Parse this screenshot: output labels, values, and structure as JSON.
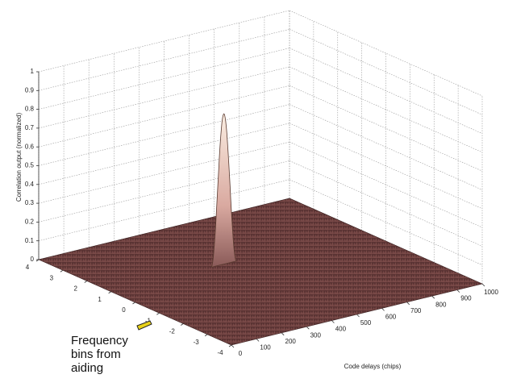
{
  "chart_data": {
    "type": "surface3d",
    "zlabel": "Correlation output (normalized)",
    "xlabel": "Code delays (chips)",
    "annotation": "Frequency bins from aiding",
    "xlim": [
      0,
      1000
    ],
    "xticks": [
      0,
      100,
      200,
      300,
      400,
      500,
      600,
      700,
      800,
      900,
      1000
    ],
    "ylim": [
      -4,
      4
    ],
    "yticks": [
      -4,
      -3,
      -2,
      -1,
      0,
      1,
      2,
      3,
      4
    ],
    "zlim": [
      0,
      1
    ],
    "zticks": [
      0,
      0.1,
      0.2,
      0.3,
      0.4,
      0.5,
      0.6,
      0.7,
      0.8,
      0.9,
      1
    ],
    "peak": {
      "x": 450,
      "y": 1,
      "z": 0.8
    },
    "grid": true
  }
}
